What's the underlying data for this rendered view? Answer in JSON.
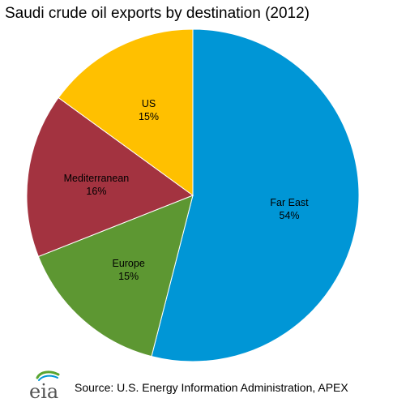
{
  "chart_data": {
    "type": "pie",
    "title": "Saudi crude oil exports by destination (2012)",
    "start_angle_deg": 0,
    "direction": "clockwise",
    "slices": [
      {
        "label": "Far East",
        "value": 54,
        "value_label": "54%",
        "color": "#0096d6"
      },
      {
        "label": "Europe",
        "value": 15,
        "value_label": "15%",
        "color": "#5d9732"
      },
      {
        "label": "Mediterranean",
        "value": 16,
        "value_label": "16%",
        "color": "#a33340"
      },
      {
        "label": "US",
        "value": 15,
        "value_label": "15%",
        "color": "#ffc000"
      }
    ],
    "legend": "none"
  },
  "footer": {
    "logo_text": "eia",
    "source": "Source: U.S. Energy Information Administration, APEX"
  },
  "colors": {
    "logo_green": "#5aa532",
    "logo_blue": "#0096d6",
    "logo_text": "#555555"
  }
}
